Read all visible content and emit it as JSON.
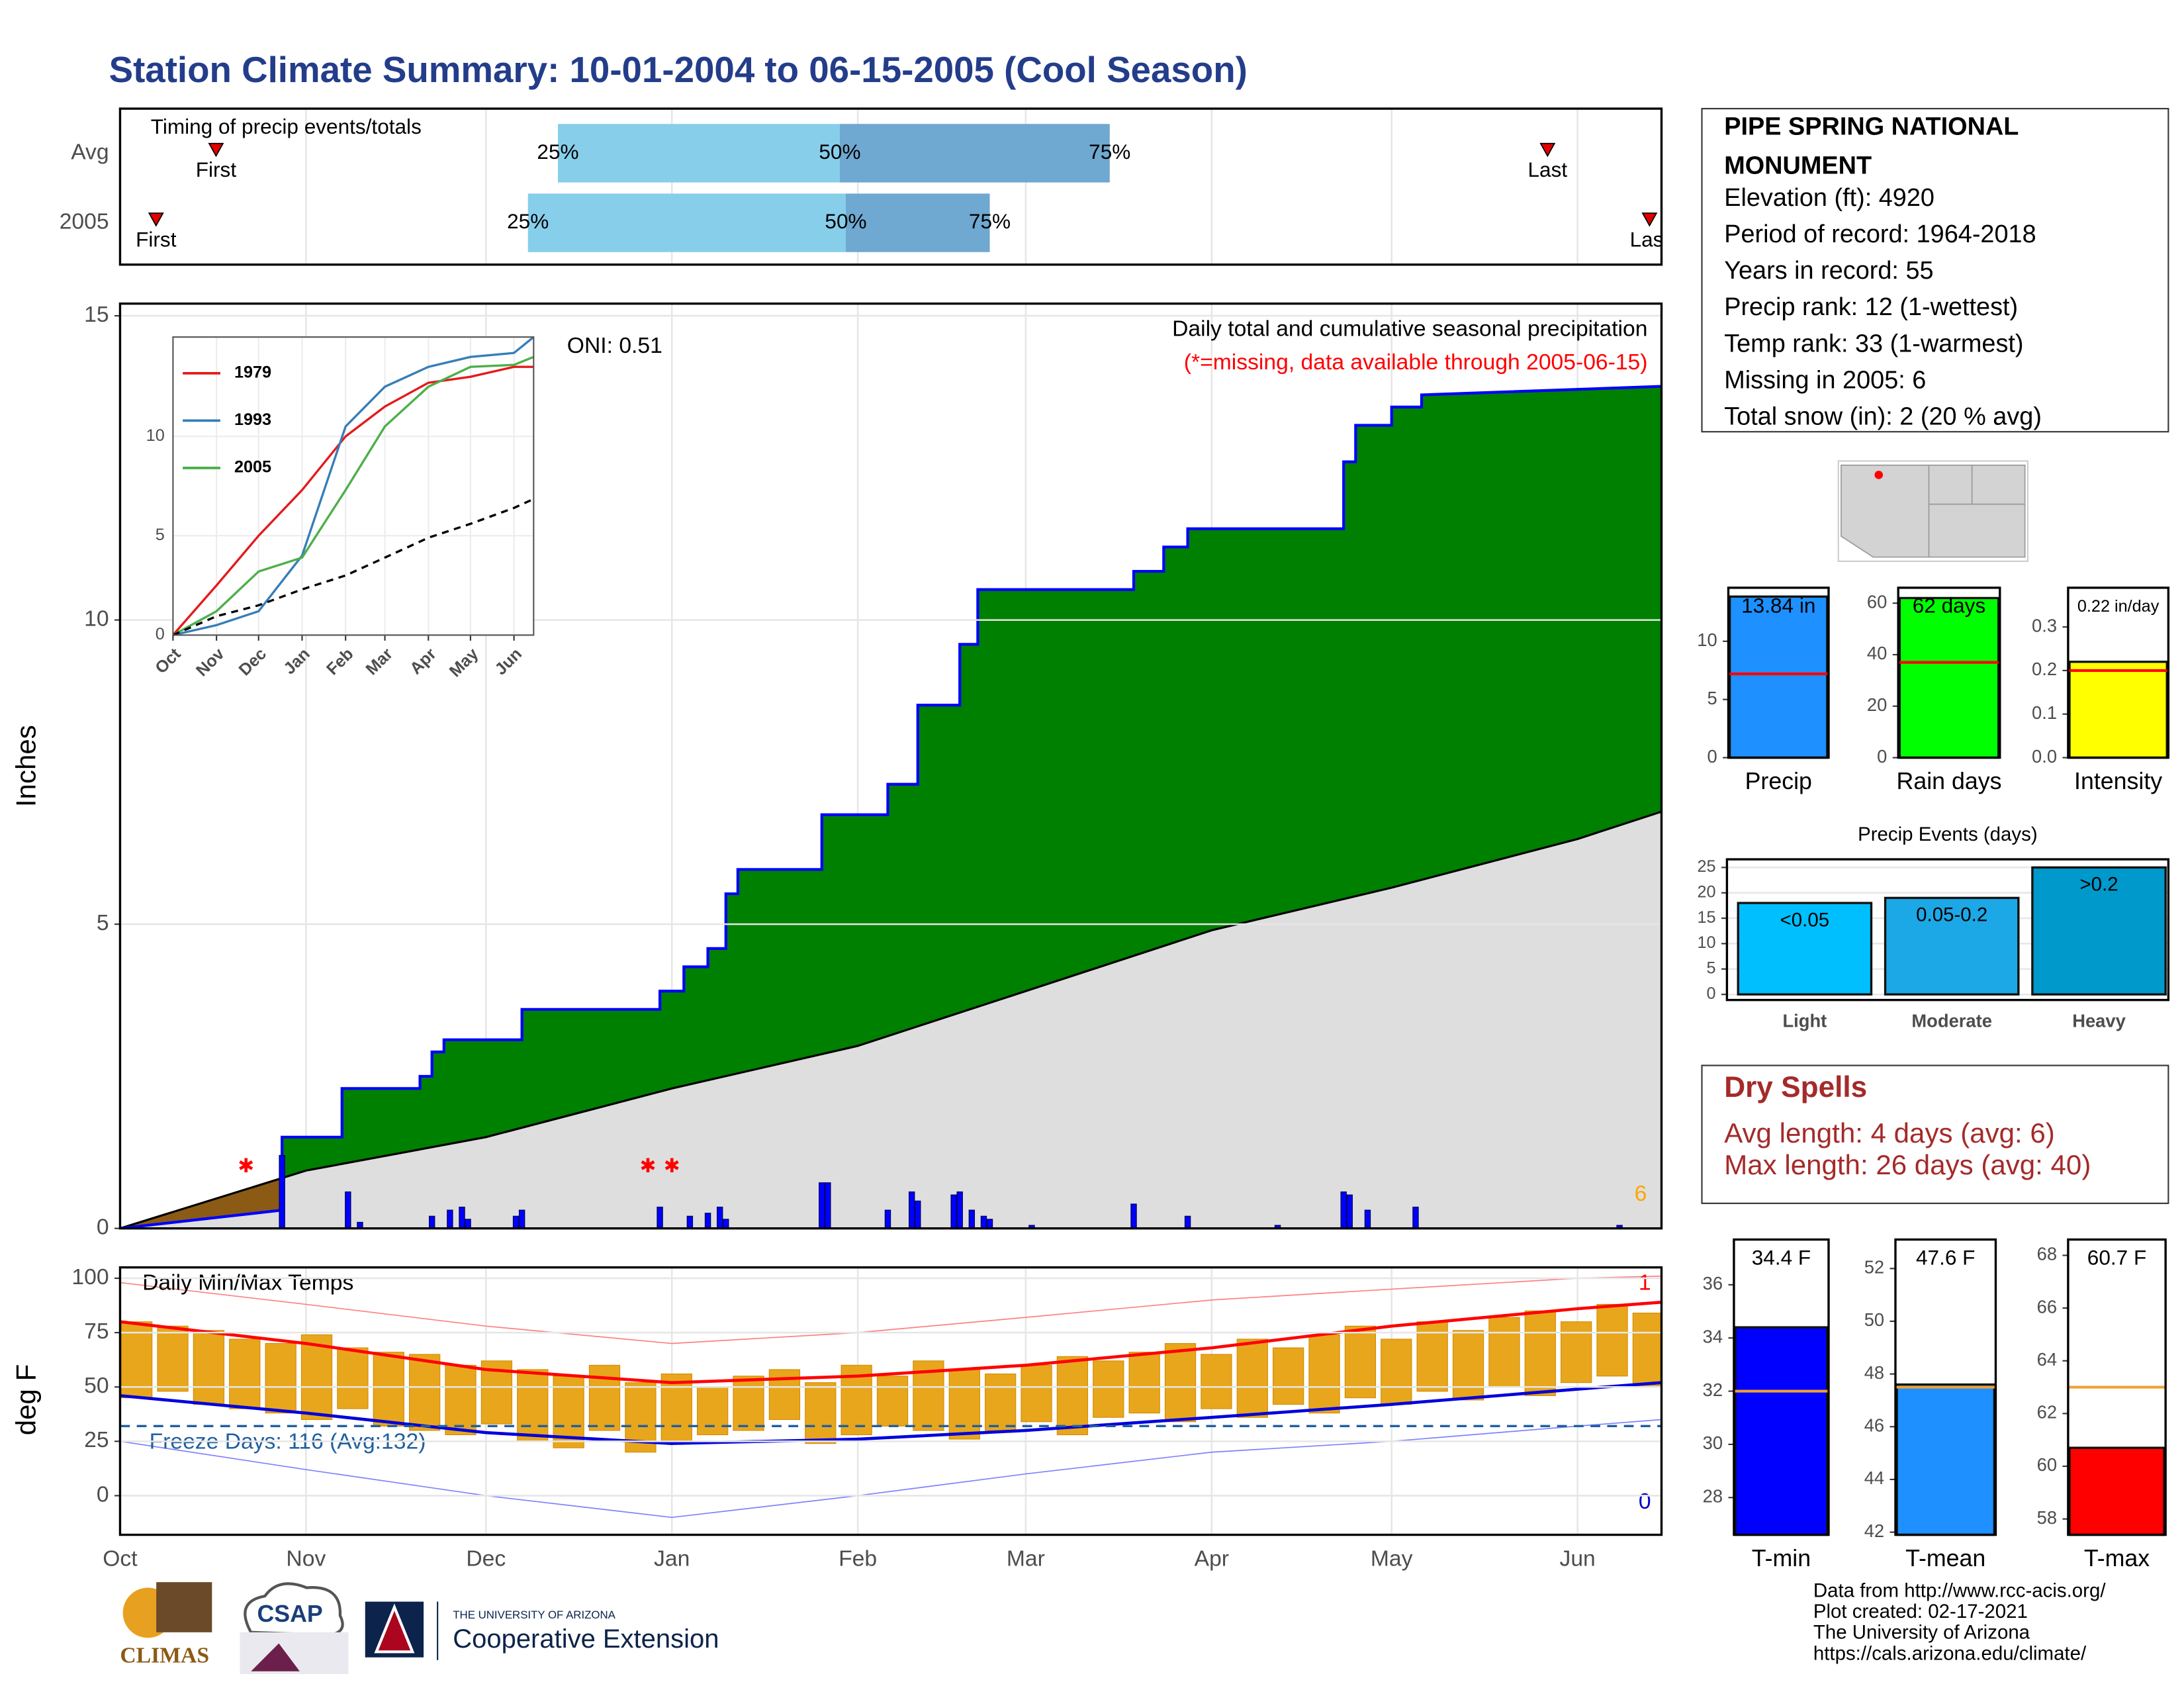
{
  "title": "Station Climate Summary: 10-01-2004 to 06-15-2005 (Cool Season)",
  "station": {
    "name_lines": [
      "PIPE SPRING NATIONAL",
      "MONUMENT"
    ],
    "lines": [
      "Elevation (ft): 4920",
      "Period of record: 1964-2018",
      "Years in record: 55",
      "Precip rank: 12 (1-wettest)",
      "Temp rank: 33 (1-warmest)",
      "Missing in 2005: 6",
      "Total snow (in): 2 (20 % avg)"
    ]
  },
  "dry_spells": {
    "title": "Dry Spells",
    "lines": [
      "Avg length: 4 days (avg: 6)",
      "Max length: 26 days (avg: 40)"
    ]
  },
  "footer": {
    "logos": [
      "CLIMAS",
      "CSAP",
      "THE UNIVERSITY OF ARIZONA",
      "Cooperative Extension"
    ],
    "credits": [
      "Data from http://www.rcc-acis.org/",
      "Plot created: 02-17-2021",
      "The University of Arizona",
      "https://cals.arizona.edu/climate/"
    ]
  },
  "chart_data": [
    {
      "type": "timing",
      "title": "Timing of precip events/totals",
      "xlim": [
        0,
        257
      ],
      "quantile_labels": [
        "25%",
        "50%",
        "75%"
      ],
      "first_label": "First",
      "last_label": "Last",
      "colors": [
        "#87ceeb",
        "#6fa8d0"
      ],
      "marker_color": "#e00000",
      "series": [
        {
          "name": "Avg",
          "first": 16,
          "q25": 73,
          "q50": 120,
          "q75": 165,
          "last": 238
        },
        {
          "name": "2005",
          "first": 6,
          "q25": 68,
          "q50": 121,
          "q75": 145,
          "last": 255
        }
      ]
    },
    {
      "type": "area",
      "title": "Daily total and cumulative seasonal precipitation",
      "subtitle": "(*=missing, data available through 2005-06-15)",
      "annotation": "ONI: 0.51",
      "y_label": "Inches",
      "missing_count": "6",
      "missing": {
        "x": [
          21,
          88,
          92
        ],
        "symbol": "✱"
      },
      "xlim": [
        0,
        257
      ],
      "ylim": [
        0,
        15.2
      ],
      "yticks": [
        0,
        5,
        10,
        15
      ],
      "grid": true,
      "deficit_color": "#8b5a14",
      "series": [
        {
          "color": "#008000",
          "line_color": "#0000ff",
          "x": [
            0,
            27,
            27,
            37,
            37,
            50,
            50,
            52,
            52,
            54,
            54,
            67,
            67,
            90,
            90,
            94,
            94,
            98,
            98,
            101,
            101,
            103,
            103,
            117,
            117,
            128,
            128,
            133,
            133,
            140,
            140,
            143,
            143,
            169,
            169,
            174,
            174,
            178,
            178,
            204,
            204,
            206,
            206,
            212,
            212,
            217,
            217,
            257
          ],
          "values": [
            0,
            0.3,
            1.5,
            1.5,
            2.3,
            2.3,
            2.5,
            2.5,
            2.9,
            2.9,
            3.1,
            3.1,
            3.6,
            3.6,
            3.9,
            3.9,
            4.3,
            4.3,
            4.6,
            4.6,
            5.5,
            5.5,
            5.9,
            5.9,
            6.8,
            6.8,
            7.3,
            7.3,
            8.6,
            8.6,
            9.6,
            9.6,
            10.5,
            10.5,
            10.8,
            10.8,
            11.2,
            11.2,
            11.5,
            11.5,
            12.6,
            12.6,
            13.2,
            13.2,
            13.5,
            13.5,
            13.7,
            13.84
          ]
        },
        {
          "color": "#dedede",
          "line_color": "#000000",
          "x": [
            0,
            31,
            61,
            92,
            123,
            151,
            182,
            212,
            243,
            257
          ],
          "values": [
            0,
            0.95,
            1.5,
            2.3,
            3.0,
            3.9,
            4.9,
            5.6,
            6.4,
            6.85
          ]
        }
      ],
      "bars": {
        "color": "#0000ff",
        "x": [
          27,
          38,
          40,
          52,
          55,
          57,
          58,
          66,
          67,
          90,
          95,
          98,
          100,
          101,
          117,
          118,
          128,
          132,
          133,
          139,
          140,
          142,
          144,
          145,
          152,
          169,
          178,
          193,
          204,
          205,
          208,
          216,
          250
        ],
        "values": [
          1.2,
          0.6,
          0.1,
          0.2,
          0.3,
          0.35,
          0.15,
          0.2,
          0.3,
          0.35,
          0.2,
          0.25,
          0.35,
          0.15,
          0.75,
          0.75,
          0.3,
          0.6,
          0.45,
          0.55,
          0.6,
          0.3,
          0.2,
          0.15,
          0.05,
          0.4,
          0.2,
          0.05,
          0.6,
          0.55,
          0.3,
          0.35,
          0.05
        ]
      }
    },
    {
      "type": "line",
      "xlim": [
        0,
        257
      ],
      "ylim": [
        0,
        15
      ],
      "xticks": [
        {
          "value": 0,
          "label": "Oct"
        },
        {
          "value": 31,
          "label": "Nov"
        },
        {
          "value": 61,
          "label": "Dec"
        },
        {
          "value": 92,
          "label": "Jan"
        },
        {
          "value": 123,
          "label": "Feb"
        },
        {
          "value": 151,
          "label": "Mar"
        },
        {
          "value": 182,
          "label": "Apr"
        },
        {
          "value": 212,
          "label": "May"
        },
        {
          "value": 243,
          "label": "Jun"
        }
      ],
      "yticks": [
        0,
        5,
        10
      ],
      "x": [
        0,
        31,
        61,
        92,
        123,
        151,
        182,
        212,
        243,
        257
      ],
      "series": [
        {
          "name": "1979",
          "color": "#e41a1c",
          "values": [
            0,
            2.5,
            5.0,
            7.3,
            10.0,
            11.5,
            12.7,
            13.0,
            13.5,
            13.5
          ]
        },
        {
          "name": "1993",
          "color": "#377eb8",
          "values": [
            0,
            0.5,
            1.2,
            4.0,
            10.5,
            12.5,
            13.5,
            14.0,
            14.2,
            15.0
          ]
        },
        {
          "name": "2005",
          "color": "#4daf4a",
          "values": [
            0,
            1.2,
            3.2,
            3.9,
            7.3,
            10.5,
            12.5,
            13.5,
            13.6,
            14.0
          ]
        },
        {
          "color": "#000000",
          "dashed": true,
          "values": [
            0,
            0.95,
            1.5,
            2.3,
            3.0,
            3.9,
            4.9,
            5.6,
            6.4,
            6.85
          ]
        }
      ]
    },
    {
      "type": "temp",
      "title": "Daily Min/Max Temps",
      "y_label": "deg F",
      "xlim": [
        0,
        257
      ],
      "ylim": [
        -18,
        105
      ],
      "xticks": [
        {
          "value": 0,
          "label": "Oct"
        },
        {
          "value": 31,
          "label": "Nov"
        },
        {
          "value": 61,
          "label": "Dec"
        },
        {
          "value": 92,
          "label": "Jan"
        },
        {
          "value": 123,
          "label": "Feb"
        },
        {
          "value": 151,
          "label": "Mar"
        },
        {
          "value": 182,
          "label": "Apr"
        },
        {
          "value": 212,
          "label": "May"
        },
        {
          "value": 243,
          "label": "Jun"
        }
      ],
      "yticks": [
        0,
        25,
        50,
        75,
        100
      ],
      "grid": true,
      "freeze": 32,
      "freeze_label": "Freeze Days: 116 (Avg:132)",
      "record_high_count": "1",
      "record_low_count": "0",
      "daily": {
        "color": "#e8a61c",
        "x": [
          0,
          6,
          12,
          18,
          24,
          30,
          36,
          42,
          48,
          54,
          60,
          66,
          72,
          78,
          84,
          90,
          96,
          102,
          108,
          114,
          120,
          126,
          132,
          138,
          144,
          150,
          156,
          162,
          168,
          174,
          180,
          186,
          192,
          198,
          204,
          210,
          216,
          222,
          228,
          234,
          240,
          246,
          252
        ],
        "low": [
          45,
          48,
          42,
          40,
          38,
          35,
          40,
          32,
          30,
          28,
          33,
          25,
          22,
          30,
          20,
          25,
          28,
          30,
          35,
          24,
          28,
          32,
          30,
          26,
          30,
          34,
          28,
          36,
          38,
          34,
          40,
          36,
          42,
          38,
          45,
          42,
          48,
          44,
          50,
          46,
          52,
          55,
          50
        ],
        "high": [
          80,
          78,
          76,
          72,
          70,
          74,
          68,
          66,
          65,
          60,
          62,
          58,
          55,
          60,
          52,
          56,
          50,
          55,
          58,
          52,
          60,
          55,
          62,
          58,
          56,
          60,
          64,
          62,
          66,
          70,
          65,
          72,
          68,
          74,
          78,
          72,
          80,
          76,
          82,
          85,
          80,
          88,
          84
        ]
      },
      "x": [
        0,
        31,
        61,
        92,
        123,
        151,
        182,
        212,
        243,
        257
      ],
      "series": [
        {
          "color": "#ff8080",
          "width": 0.8,
          "values": [
            98,
            88,
            78,
            70,
            75,
            82,
            90,
            95,
            100,
            101
          ]
        },
        {
          "color": "#8080ff",
          "width": 0.8,
          "values": [
            25,
            12,
            0,
            -10,
            0,
            10,
            20,
            25,
            32,
            35
          ]
        },
        {
          "color": "#ff0000",
          "width": 2.2,
          "values": [
            80,
            70,
            58,
            52,
            55,
            60,
            68,
            78,
            86,
            89
          ]
        },
        {
          "color": "#0000dd",
          "width": 2.2,
          "values": [
            46,
            38,
            29,
            24,
            26,
            30,
            36,
            42,
            49,
            52
          ]
        }
      ]
    },
    {
      "type": "bar",
      "categories": [
        "Precip"
      ],
      "values": [
        13.84
      ],
      "value_labels": [
        "13.84 in"
      ],
      "average": 7.2,
      "color": "#1e90ff",
      "average_color": "#ff0000",
      "ylim": [
        0,
        14.6
      ],
      "yticks": [
        0,
        5,
        10
      ]
    },
    {
      "type": "bar",
      "categories": [
        "Rain days"
      ],
      "values": [
        62
      ],
      "value_labels": [
        "62 days"
      ],
      "average": 37,
      "color": "#00ff00",
      "average_color": "#ff0000",
      "ylim": [
        0,
        66
      ],
      "yticks": [
        0,
        20,
        40,
        60
      ]
    },
    {
      "type": "bar",
      "categories": [
        "Intensity"
      ],
      "values": [
        0.22
      ],
      "value_labels": [
        "0.22 in/day"
      ],
      "average": 0.2,
      "color": "#ffff00",
      "average_color": "#ff0000",
      "ylim": [
        0,
        0.39
      ],
      "yticks": [
        {
          "value": 0,
          "label": "0.0"
        },
        0.1,
        0.2,
        0.3
      ]
    },
    {
      "type": "bar",
      "title": "Precip Events (days)",
      "categories": [
        "Light",
        "Moderate",
        "Heavy"
      ],
      "values": [
        18,
        19,
        25
      ],
      "value_labels": [
        "<0.05",
        "0.05-0.2",
        ">0.2"
      ],
      "colors": [
        "#00bfff",
        "#1ca8e6",
        "#0099cc"
      ],
      "ylim": [
        -1.1,
        26.6
      ],
      "yticks": [
        0,
        5,
        10,
        15,
        20,
        25
      ],
      "grid": true
    },
    {
      "type": "bar",
      "categories": [
        "T-min"
      ],
      "values": [
        34.4
      ],
      "value_labels": [
        "34.4 F"
      ],
      "average": 32,
      "color": "#0000ff",
      "average_color": "#f0a030",
      "ylim": [
        26.6,
        37.7
      ],
      "yticks": [
        28,
        30,
        32,
        34,
        36
      ]
    },
    {
      "type": "bar",
      "categories": [
        "T-mean"
      ],
      "values": [
        47.6
      ],
      "value_labels": [
        "47.6 F"
      ],
      "average": 47.5,
      "color": "#1e90ff",
      "average_color": "#f0a030",
      "ylim": [
        41.9,
        53.1
      ],
      "yticks": [
        42,
        44,
        46,
        48,
        50,
        52
      ]
    },
    {
      "type": "bar",
      "categories": [
        "T-max"
      ],
      "values": [
        60.7
      ],
      "value_labels": [
        "60.7 F"
      ],
      "average": 63,
      "color": "#ff0000",
      "average_color": "#f0a030",
      "ylim": [
        57.4,
        68.6
      ],
      "yticks": [
        58,
        60,
        62,
        64,
        66,
        68
      ]
    }
  ]
}
